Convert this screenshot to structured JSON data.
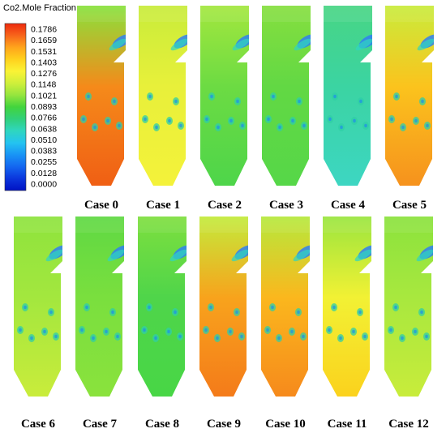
{
  "legend": {
    "title": "Co2.Mole Fraction",
    "ticks": [
      "0.1786",
      "0.1659",
      "0.1531",
      "0.1403",
      "0.1276",
      "0.1148",
      "0.1021",
      "0.0893",
      "0.0766",
      "0.0638",
      "0.0510",
      "0.0383",
      "0.0255",
      "0.0128",
      "0.0000"
    ],
    "colors": [
      "#ee2a0e",
      "#f7651b",
      "#ffa51c",
      "#ffd11d",
      "#faf335",
      "#cfef3b",
      "#95e53e",
      "#42d43d",
      "#31d07a",
      "#2fd6c0",
      "#24c3f0",
      "#1994f5",
      "#1466f0",
      "#0b36dc",
      "#0012c4"
    ]
  },
  "cases": [
    {
      "label": "Case 0",
      "base": "#f05f14",
      "mid": "#f58a1a",
      "top": "#88e23c"
    },
    {
      "label": "Case 1",
      "base": "#f4f23a",
      "mid": "#e8f03a",
      "top": "#c8ec3a"
    },
    {
      "label": "Case 2",
      "base": "#4ed54a",
      "mid": "#6cdb43",
      "top": "#a3e73e"
    },
    {
      "label": "Case 3",
      "base": "#56d748",
      "mid": "#62d844",
      "top": "#86df3f"
    },
    {
      "label": "Case 4",
      "base": "#3dd6c2",
      "mid": "#3bd4a2",
      "top": "#48d584"
    },
    {
      "label": "Case 5",
      "base": "#f6921d",
      "mid": "#fbc31d",
      "top": "#c9ec3b"
    },
    {
      "label": "Case 6",
      "base": "#c9ec3b",
      "mid": "#a3e73e",
      "top": "#8ee33d"
    },
    {
      "label": "Case 7",
      "base": "#8ae23d",
      "mid": "#7adf3e",
      "top": "#5fd843"
    },
    {
      "label": "Case 8",
      "base": "#48d646",
      "mid": "#4fd54a",
      "top": "#7edf3e"
    },
    {
      "label": "Case 9",
      "base": "#f47b1a",
      "mid": "#f8a31c",
      "top": "#c3eb3b"
    },
    {
      "label": "Case 10",
      "base": "#f68a1c",
      "mid": "#fbb71d",
      "top": "#b6e93c"
    },
    {
      "label": "Case 11",
      "base": "#fbd21d",
      "mid": "#f2f134",
      "top": "#9ae53e"
    },
    {
      "label": "Case 12",
      "base": "#c8ec3b",
      "mid": "#a8e83e",
      "top": "#8be23d"
    }
  ]
}
